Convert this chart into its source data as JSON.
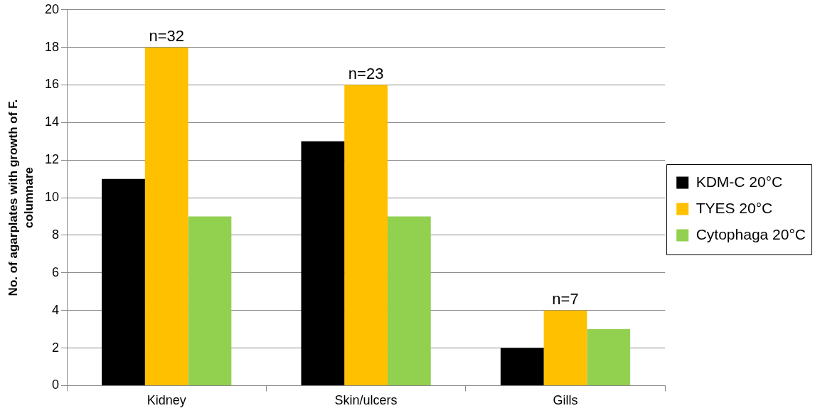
{
  "chart_data": {
    "type": "bar",
    "ylabel": "No. of agarplates with growth of F. columnare",
    "categories": [
      "Kidney",
      "Skin/ulcers",
      "Gills"
    ],
    "series": [
      {
        "name": "KDM-C 20°C",
        "color": "#000000",
        "values": [
          11,
          13,
          2
        ]
      },
      {
        "name": "TYES 20°C",
        "color": "#ffc000",
        "values": [
          18,
          16,
          4
        ]
      },
      {
        "name": "Cytophaga 20°C",
        "color": "#92d050",
        "values": [
          9,
          9,
          3
        ]
      }
    ],
    "ylim": [
      0,
      20
    ],
    "yticks": [
      0,
      2,
      4,
      6,
      8,
      10,
      12,
      14,
      16,
      18,
      20
    ],
    "grid": "y",
    "legend": "right",
    "annotations": [
      "n=32",
      "n=23",
      "n=7"
    ]
  }
}
